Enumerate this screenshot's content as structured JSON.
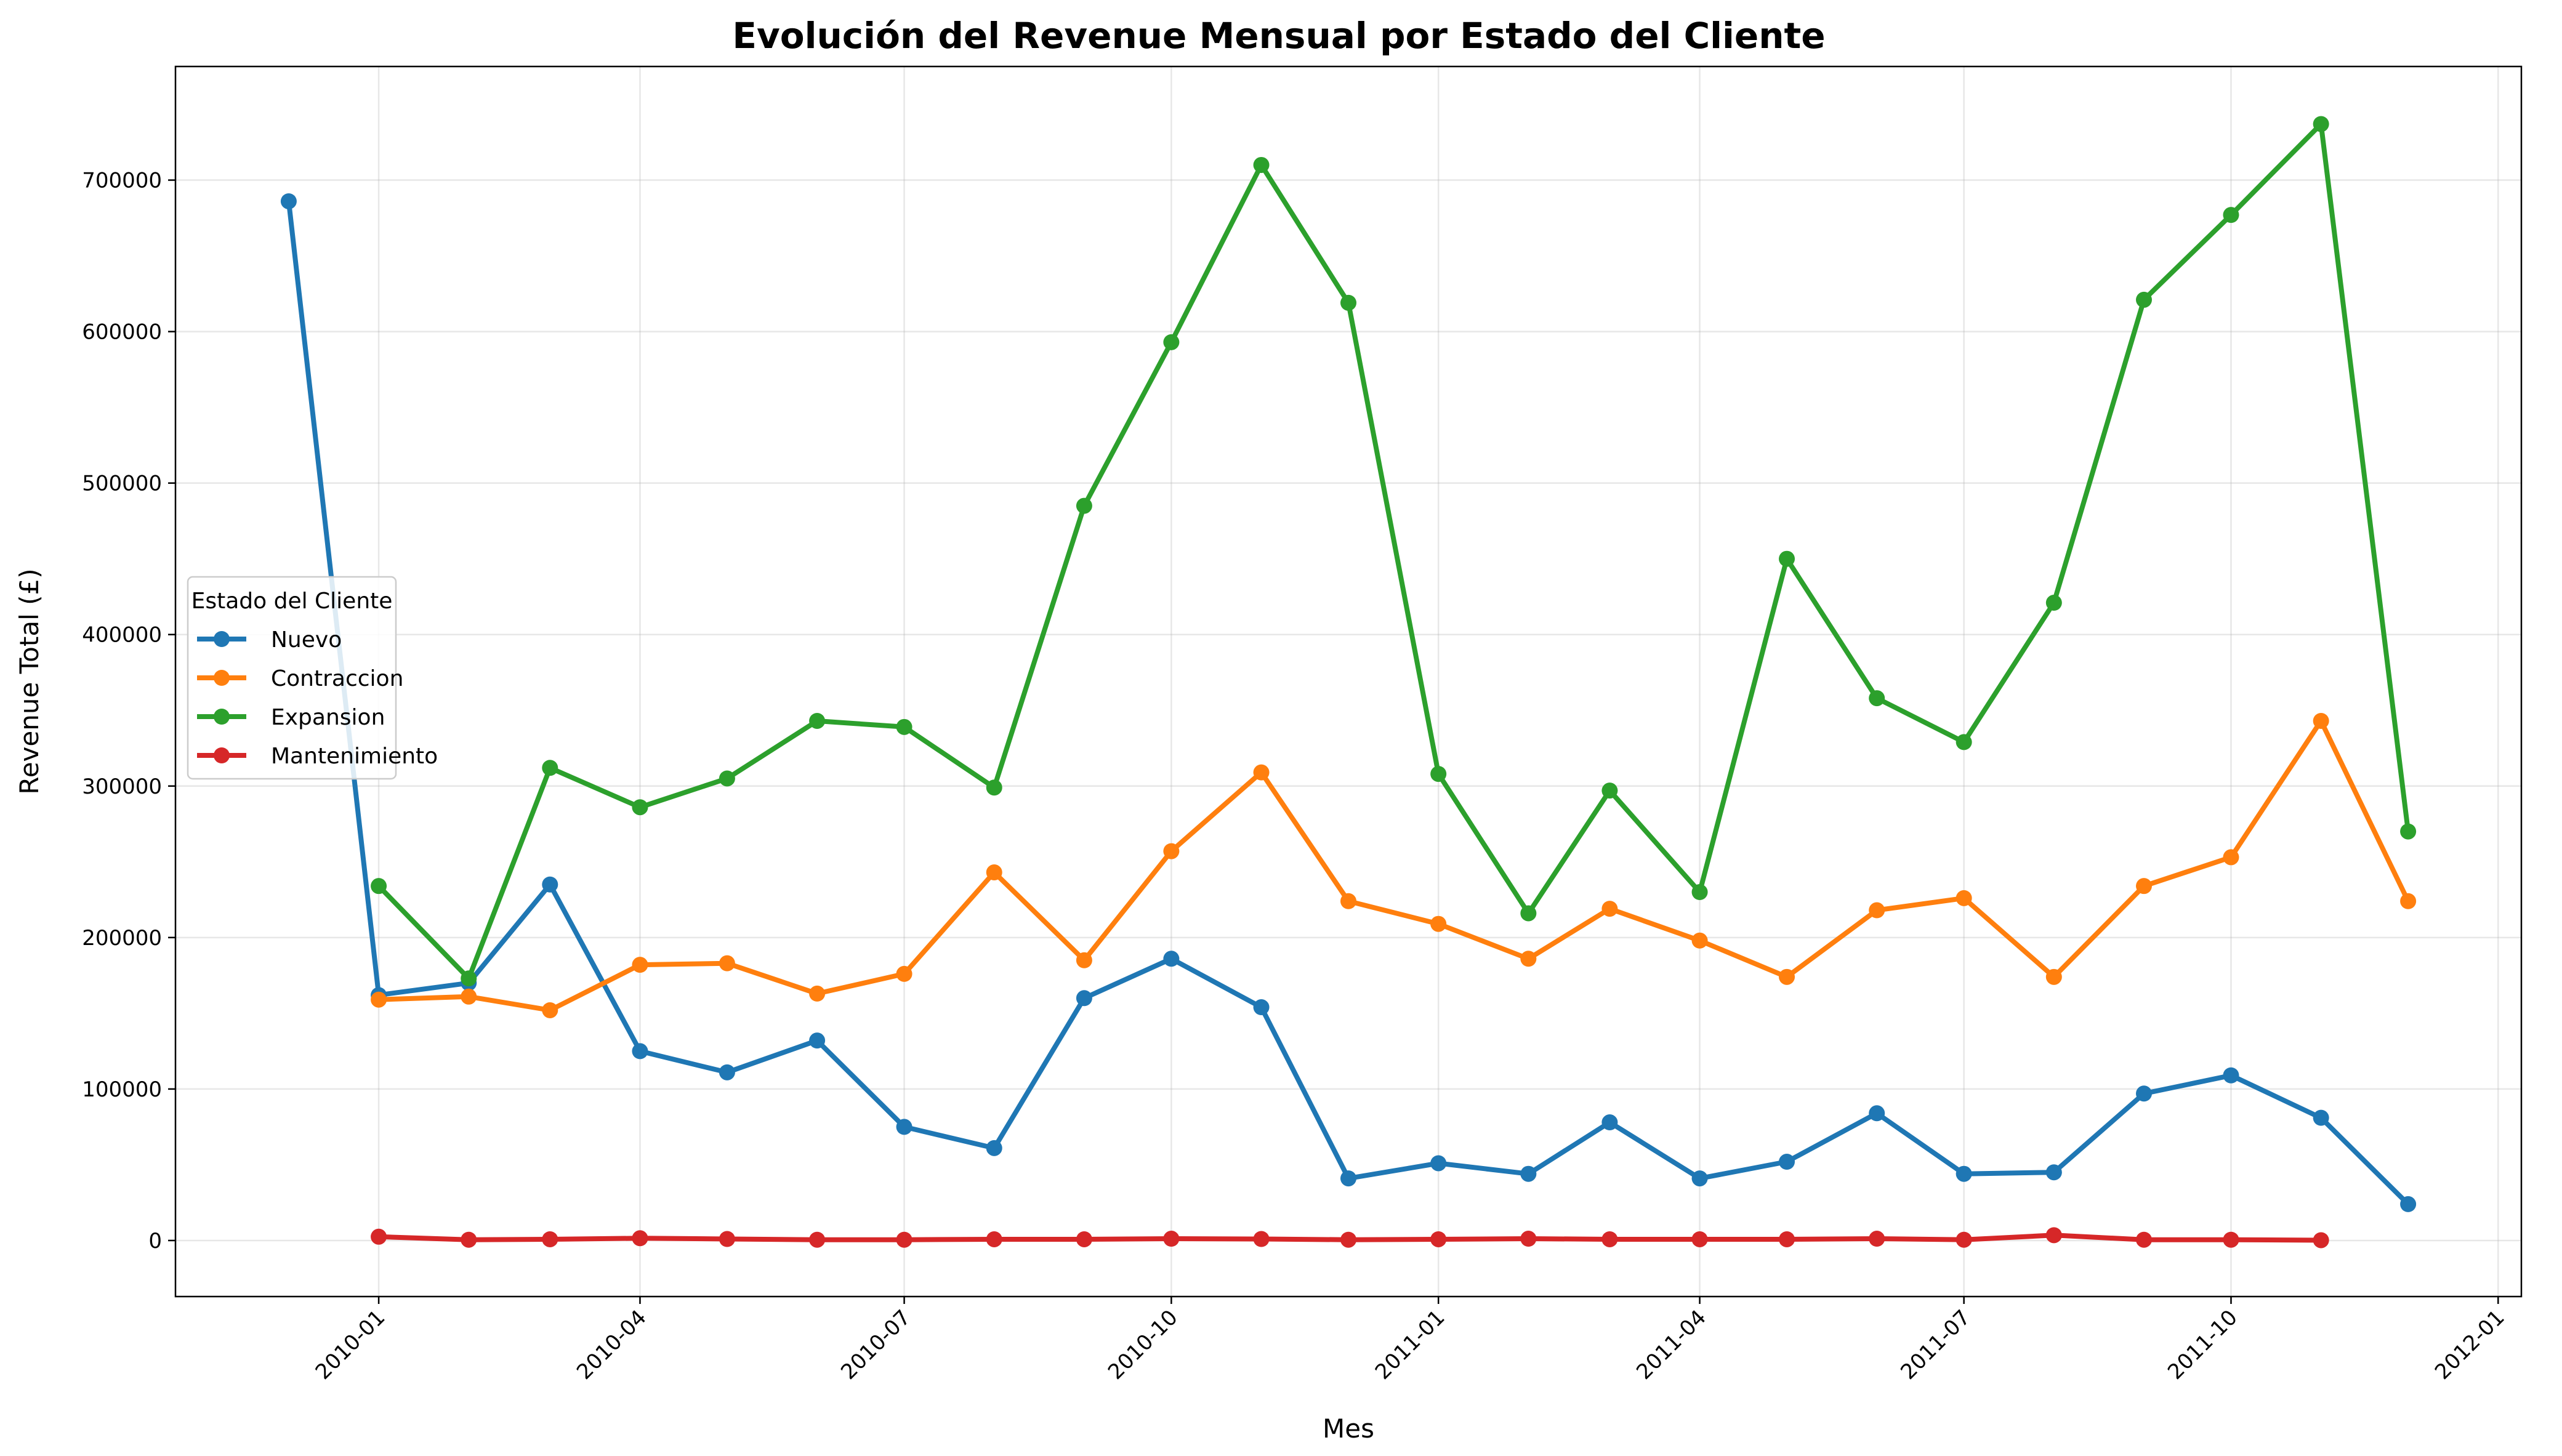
{
  "chart_data": {
    "type": "line",
    "title": "Evolución del Revenue Mensual por Estado del Cliente",
    "xlabel": "Mes",
    "ylabel": "Revenue Total (£)",
    "x_tick_labels": [
      "2010-01",
      "2010-04",
      "2010-07",
      "2010-10",
      "2011-01",
      "2011-04",
      "2011-07",
      "2011-10",
      "2012-01"
    ],
    "y_ticks": [
      0,
      100000,
      200000,
      300000,
      400000,
      500000,
      600000,
      700000
    ],
    "ylim": [
      -37000,
      775000
    ],
    "xlim": [
      "2009-10-23",
      "2012-01-09"
    ],
    "grid": true,
    "legend": {
      "title": "Estado del Cliente",
      "placement": "center-left"
    },
    "series": [
      {
        "name": "Nuevo",
        "color": "#1f77b4",
        "x": [
          "2009-12-01",
          "2010-01-01",
          "2010-02-01",
          "2010-03-01",
          "2010-04-01",
          "2010-05-01",
          "2010-06-01",
          "2010-07-01",
          "2010-08-01",
          "2010-09-01",
          "2010-10-01",
          "2010-11-01",
          "2010-12-01",
          "2011-01-01",
          "2011-02-01",
          "2011-03-01",
          "2011-04-01",
          "2011-05-01",
          "2011-06-01",
          "2011-07-01",
          "2011-08-01",
          "2011-09-01",
          "2011-10-01",
          "2011-11-01",
          "2011-12-01"
        ],
        "values": [
          686000,
          162000,
          170000,
          235000,
          125000,
          111000,
          132000,
          75000,
          61000,
          160000,
          186000,
          154000,
          41000,
          51000,
          44000,
          78000,
          41000,
          52000,
          84000,
          44000,
          45000,
          97000,
          109000,
          81000,
          24000
        ]
      },
      {
        "name": "Contraccion",
        "color": "#ff7f0e",
        "x": [
          "2010-01-01",
          "2010-02-01",
          "2010-03-01",
          "2010-04-01",
          "2010-05-01",
          "2010-06-01",
          "2010-07-01",
          "2010-08-01",
          "2010-09-01",
          "2010-10-01",
          "2010-11-01",
          "2010-12-01",
          "2011-01-01",
          "2011-02-01",
          "2011-03-01",
          "2011-04-01",
          "2011-05-01",
          "2011-06-01",
          "2011-07-01",
          "2011-08-01",
          "2011-09-01",
          "2011-10-01",
          "2011-11-01",
          "2011-12-01"
        ],
        "values": [
          159000,
          161000,
          152000,
          182000,
          183000,
          163000,
          176000,
          243000,
          185000,
          257000,
          309000,
          224000,
          209000,
          186000,
          219000,
          198000,
          174000,
          218000,
          226000,
          174000,
          234000,
          253000,
          343000,
          224000
        ]
      },
      {
        "name": "Expansion",
        "color": "#2ca02c",
        "x": [
          "2010-01-01",
          "2010-02-01",
          "2010-03-01",
          "2010-04-01",
          "2010-05-01",
          "2010-06-01",
          "2010-07-01",
          "2010-08-01",
          "2010-09-01",
          "2010-10-01",
          "2010-11-01",
          "2010-12-01",
          "2011-01-01",
          "2011-02-01",
          "2011-03-01",
          "2011-04-01",
          "2011-05-01",
          "2011-06-01",
          "2011-07-01",
          "2011-08-01",
          "2011-09-01",
          "2011-10-01",
          "2011-11-01",
          "2011-12-01"
        ],
        "values": [
          234000,
          173000,
          312000,
          286000,
          305000,
          343000,
          339000,
          299000,
          485000,
          593000,
          710000,
          619000,
          308000,
          216000,
          297000,
          230000,
          450000,
          358000,
          329000,
          421000,
          621000,
          677000,
          737000,
          270000
        ]
      },
      {
        "name": "Mantenimiento",
        "color": "#d62728",
        "x": [
          "2010-01-01",
          "2010-02-01",
          "2010-03-01",
          "2010-04-01",
          "2010-05-01",
          "2010-06-01",
          "2010-07-01",
          "2010-08-01",
          "2010-09-01",
          "2010-10-01",
          "2010-11-01",
          "2010-12-01",
          "2011-01-01",
          "2011-02-01",
          "2011-03-01",
          "2011-04-01",
          "2011-05-01",
          "2011-06-01",
          "2011-07-01",
          "2011-08-01",
          "2011-09-01",
          "2011-10-01",
          "2011-11-01"
        ],
        "values": [
          2500,
          500,
          800,
          1500,
          1000,
          500,
          500,
          800,
          800,
          1200,
          1000,
          500,
          800,
          1200,
          800,
          800,
          800,
          1200,
          500,
          3500,
          500,
          500,
          200
        ]
      }
    ]
  }
}
